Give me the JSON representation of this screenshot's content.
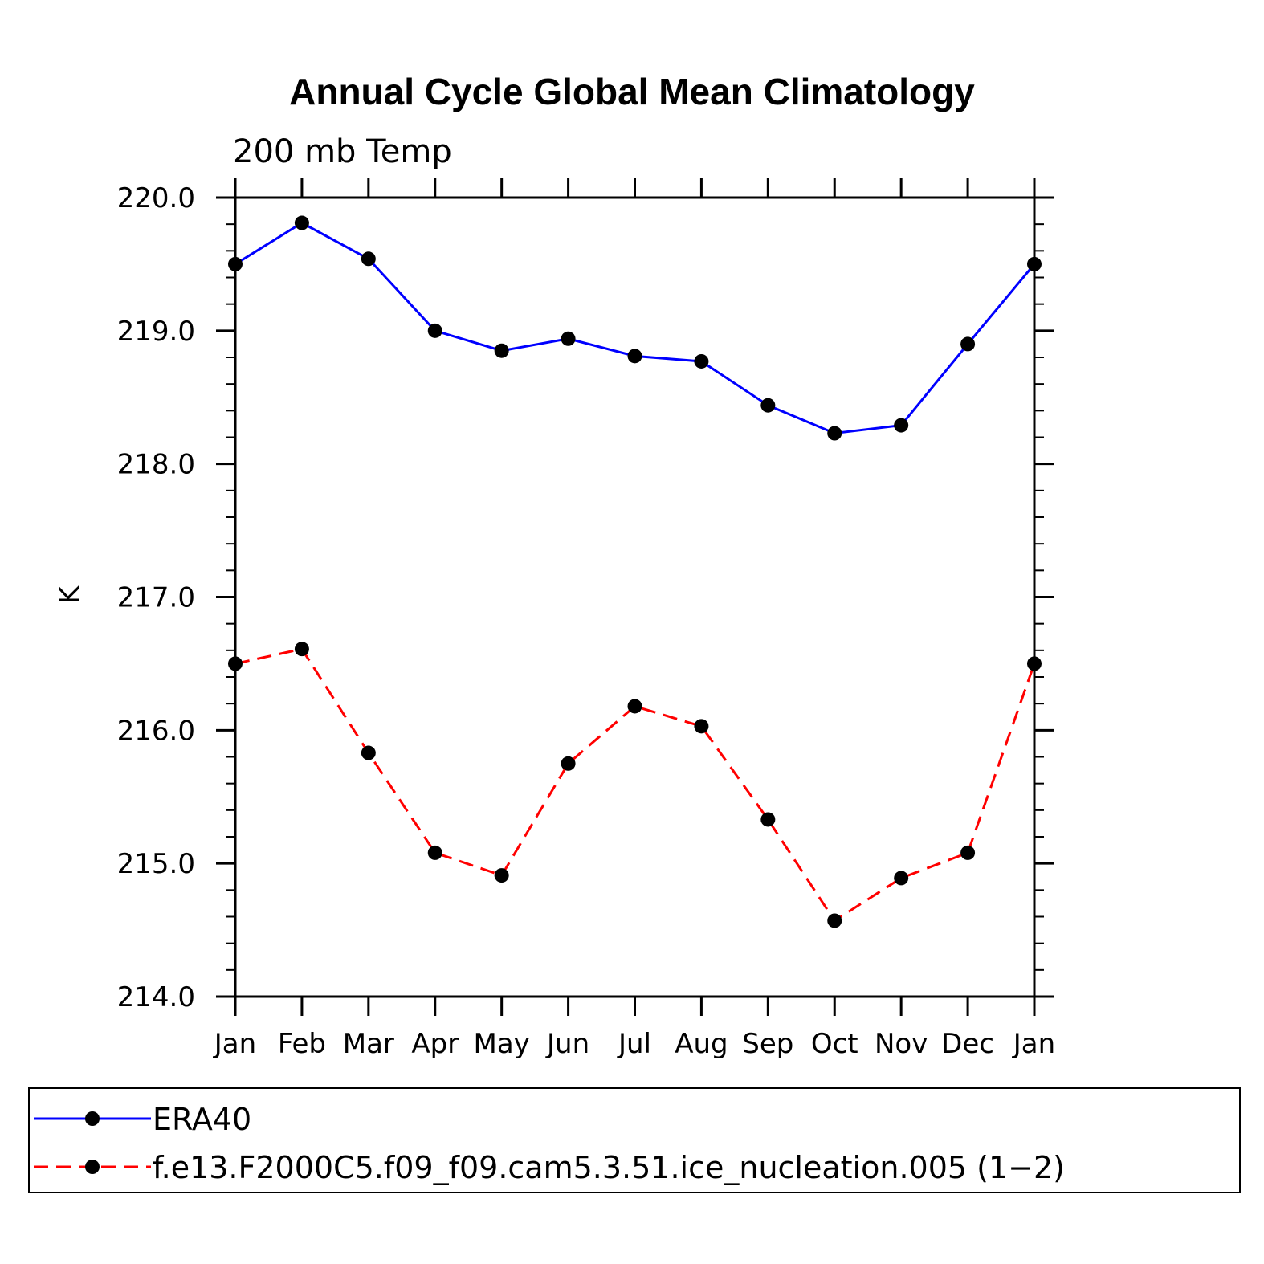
{
  "chart_data": {
    "type": "line",
    "title": "Annual Cycle Global Mean Climatology",
    "subtitle": "200 mb Temp",
    "xlabel": "",
    "ylabel": "K",
    "categories": [
      "Jan",
      "Feb",
      "Mar",
      "Apr",
      "May",
      "Jun",
      "Jul",
      "Aug",
      "Sep",
      "Oct",
      "Nov",
      "Dec",
      "Jan"
    ],
    "ylim": [
      214.0,
      220.0
    ],
    "yticks": [
      214.0,
      215.0,
      216.0,
      217.0,
      218.0,
      219.0,
      220.0
    ],
    "ytick_labels": [
      "214.0",
      "215.0",
      "216.0",
      "217.0",
      "218.0",
      "219.0",
      "220.0"
    ],
    "grid": false,
    "legend_position": "bottom",
    "series": [
      {
        "name": "ERA40",
        "color": "#0000ff",
        "dash": "solid",
        "values": [
          219.5,
          219.81,
          219.54,
          219.0,
          218.85,
          218.94,
          218.81,
          218.77,
          218.44,
          218.23,
          218.29,
          218.9,
          219.5
        ]
      },
      {
        "name": "f.e13.F2000C5.f09_f09.cam5.3.51.ice_nucleation.005 (1−2)",
        "color": "#ff0000",
        "dash": "dashed",
        "values": [
          216.5,
          216.61,
          215.83,
          215.08,
          214.91,
          215.75,
          216.18,
          216.03,
          215.33,
          214.57,
          214.89,
          215.08,
          216.5
        ]
      }
    ]
  }
}
